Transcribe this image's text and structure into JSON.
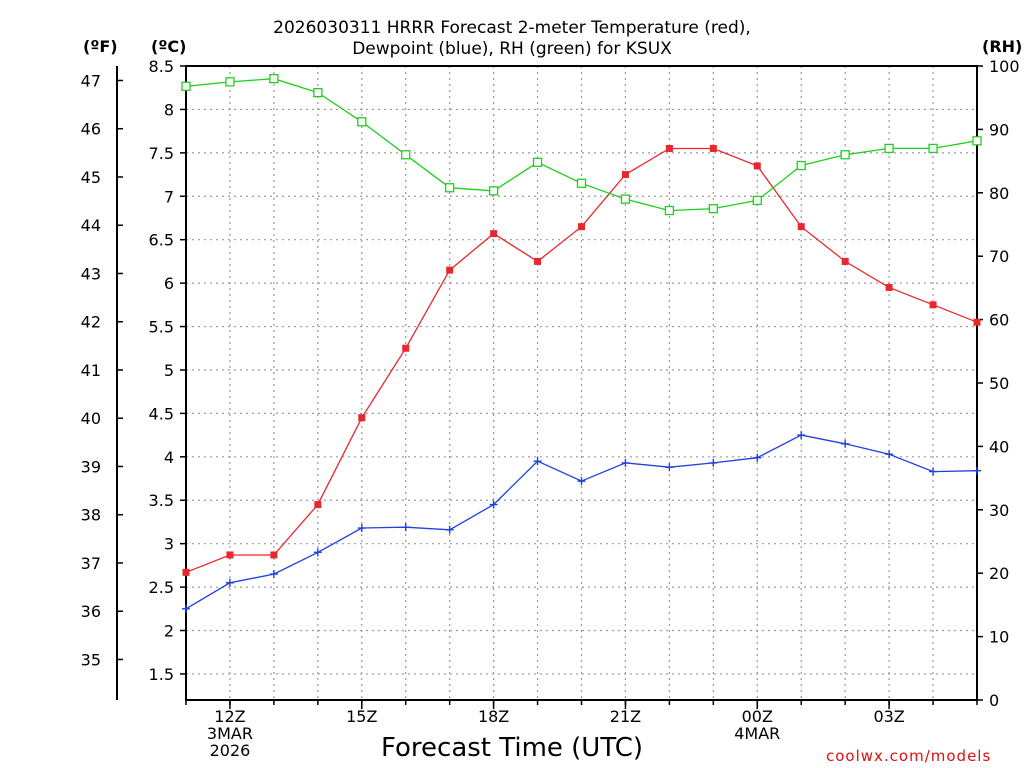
{
  "header": {
    "title_line1": "2026030311 HRRR Forecast 2-meter Temperature (red),",
    "title_line2": "Dewpoint (blue), RH (green) for KSUX",
    "unit_f": "(ºF)",
    "unit_c": "(ºC)",
    "unit_rh": "(RH)"
  },
  "footer": {
    "xaxis_label": "Forecast Time (UTC)",
    "credit": "coolwx.com/models",
    "credit_color": "#e01010"
  },
  "chart_data": {
    "type": "line",
    "title": "2026030311 HRRR Forecast 2-meter Temperature (red), Dewpoint (blue), RH (green) for KSUX",
    "xlabel": "Forecast Time (UTC)",
    "x_hours": [
      11,
      12,
      13,
      14,
      15,
      16,
      17,
      18,
      19,
      20,
      21,
      22,
      23,
      24,
      25,
      26,
      27,
      28,
      29
    ],
    "xlim": [
      11,
      29
    ],
    "x_ticks": [
      {
        "hour": 12,
        "lines": [
          "12Z",
          "3MAR",
          "2026"
        ]
      },
      {
        "hour": 15,
        "lines": [
          "15Z"
        ]
      },
      {
        "hour": 18,
        "lines": [
          "18Z"
        ]
      },
      {
        "hour": 21,
        "lines": [
          "21Z"
        ]
      },
      {
        "hour": 24,
        "lines": [
          "00Z",
          "4MAR"
        ]
      },
      {
        "hour": 27,
        "lines": [
          "03Z"
        ]
      }
    ],
    "y_left_c": {
      "label": "(ºC)",
      "range": [
        1.2,
        8.5
      ],
      "ticks": [
        "1.5",
        "2",
        "2.5",
        "3",
        "3.5",
        "4",
        "4.5",
        "5",
        "5.5",
        "6",
        "6.5",
        "7",
        "7.5",
        "8",
        "8.5"
      ]
    },
    "y_left_f": {
      "label": "(ºF)",
      "range": [
        34.16,
        47.3
      ],
      "ticks": [
        "35",
        "36",
        "37",
        "38",
        "39",
        "40",
        "41",
        "42",
        "43",
        "44",
        "45",
        "46",
        "47"
      ]
    },
    "y_right_rh": {
      "label": "(RH)",
      "range": [
        0,
        100
      ],
      "ticks": [
        "0",
        "10",
        "20",
        "30",
        "40",
        "50",
        "60",
        "70",
        "80",
        "90",
        "100"
      ]
    },
    "series": [
      {
        "name": "2-meter Temperature",
        "axis": "c",
        "color": "#e8282e",
        "marker": "filled-square",
        "values": [
          2.67,
          2.87,
          2.87,
          3.45,
          4.45,
          5.25,
          6.15,
          6.57,
          6.25,
          6.65,
          7.25,
          7.55,
          7.55,
          7.35,
          6.65,
          6.25,
          5.95,
          5.75,
          5.55
        ]
      },
      {
        "name": "Dewpoint",
        "axis": "c",
        "color": "#2040e0",
        "marker": "plus",
        "values": [
          2.25,
          2.55,
          2.65,
          2.9,
          3.18,
          3.19,
          3.16,
          3.45,
          3.95,
          3.72,
          3.93,
          3.88,
          3.93,
          3.99,
          4.25,
          4.15,
          4.03,
          3.83,
          3.84
        ]
      },
      {
        "name": "Relative Humidity",
        "axis": "rh",
        "color": "#20d020",
        "marker": "open-square",
        "values": [
          96.8,
          97.5,
          98.0,
          95.8,
          91.2,
          86.0,
          80.8,
          80.3,
          84.8,
          81.5,
          79.0,
          77.2,
          77.5,
          78.8,
          84.3,
          86.0,
          87.0,
          87.0,
          88.2
        ]
      }
    ],
    "grid": true
  }
}
